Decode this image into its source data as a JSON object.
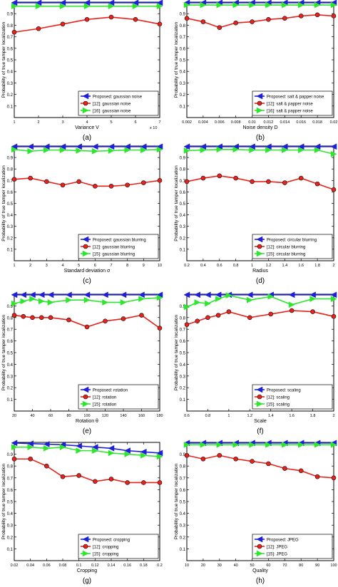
{
  "figure": {
    "colors": {
      "proposed": "#1f1fd6",
      "ref12": "#e8211b",
      "ref15": "#2ee62e"
    }
  },
  "chart_data": [
    {
      "type": "line",
      "caption": "(a)",
      "xlabel": "Variance V",
      "ylabel": "Probability of true tamper localization",
      "x": [
        1,
        2,
        3,
        4,
        5,
        6,
        7
      ],
      "xlim": [
        1,
        7
      ],
      "ylim": [
        0,
        1
      ],
      "xticks": [
        "1",
        "2",
        "3",
        "4",
        "5",
        "6",
        "7"
      ],
      "xmultiplier": "x 10",
      "yticks": [
        "0.1",
        "0.2",
        "0.3",
        "0.4",
        "0.5",
        "0.6",
        "0.7",
        "0.8",
        "0.9"
      ],
      "legend_position": "bottom-right",
      "grid": false,
      "series": [
        {
          "name": "Proposed: gaussian noise",
          "marker": "triangle-left",
          "color": "#1f1fd6",
          "values": [
            0.995,
            0.995,
            0.995,
            0.995,
            0.995,
            0.995,
            0.995
          ]
        },
        {
          "name": "[12]: gaussian noise",
          "marker": "circle",
          "color": "#e8211b",
          "values": [
            0.74,
            0.77,
            0.81,
            0.85,
            0.87,
            0.85,
            0.81
          ]
        },
        {
          "name": "[16]: gaussian noise",
          "marker": "triangle-right",
          "color": "#2ee62e",
          "values": [
            0.965,
            0.965,
            0.965,
            0.965,
            0.965,
            0.965,
            0.965
          ]
        }
      ]
    },
    {
      "type": "line",
      "caption": "(b)",
      "xlabel": "Noise density D",
      "ylabel": "Probability of true tamper localization",
      "x": [
        0.002,
        0.004,
        0.006,
        0.008,
        0.01,
        0.012,
        0.014,
        0.016,
        0.018,
        0.02
      ],
      "xlim": [
        0.002,
        0.02
      ],
      "ylim": [
        0,
        1
      ],
      "xticks": [
        "0.002",
        "0.004",
        "0.006",
        "0.008",
        "0.01",
        "0.012",
        "0.014",
        "0.016",
        "0.018",
        "0.02"
      ],
      "yticks": [
        "0.1",
        "0.2",
        "0.3",
        "0.4",
        "0.5",
        "0.6",
        "0.7",
        "0.8",
        "0.9"
      ],
      "legend_position": "bottom-right",
      "grid": false,
      "series": [
        {
          "name": "Proposed: salt & papper noise",
          "marker": "triangle-left",
          "color": "#1f1fd6",
          "values": [
            0.995,
            0.995,
            0.995,
            0.995,
            0.995,
            0.995,
            0.995,
            0.995,
            0.995,
            0.995
          ]
        },
        {
          "name": "[12]: salt & papper noise",
          "marker": "circle",
          "color": "#e8211b",
          "values": [
            0.86,
            0.83,
            0.78,
            0.82,
            0.83,
            0.85,
            0.86,
            0.88,
            0.89,
            0.88
          ]
        },
        {
          "name": "[16]: salt & papper noise",
          "marker": "triangle-right",
          "color": "#2ee62e",
          "values": [
            0.975,
            0.975,
            0.975,
            0.975,
            0.975,
            0.975,
            0.975,
            0.975,
            0.975,
            0.975
          ]
        }
      ]
    },
    {
      "type": "line",
      "caption": "(c)",
      "xlabel": "Standard deviation σ",
      "ylabel": "Probability of true tamper localization",
      "x": [
        1,
        2,
        3,
        4,
        5,
        6,
        7,
        8,
        9,
        10
      ],
      "xlim": [
        1,
        10
      ],
      "ylim": [
        0,
        1
      ],
      "xticks": [
        "1",
        "2",
        "3",
        "4",
        "5",
        "6",
        "7",
        "8",
        "9",
        "10"
      ],
      "yticks": [
        "0.1",
        "0.2",
        "0.3",
        "0.4",
        "0.5",
        "0.6",
        "0.7",
        "0.8",
        "0.9"
      ],
      "legend_position": "bottom-right",
      "grid": false,
      "series": [
        {
          "name": "Proposed: gaussian blurring",
          "marker": "triangle-left",
          "color": "#1f1fd6",
          "values": [
            0.995,
            0.995,
            0.995,
            0.995,
            0.995,
            0.995,
            0.995,
            0.995,
            0.995,
            0.995
          ]
        },
        {
          "name": "[12]: gaussian blurring",
          "marker": "circle",
          "color": "#e8211b",
          "values": [
            0.71,
            0.72,
            0.69,
            0.66,
            0.69,
            0.65,
            0.65,
            0.66,
            0.68,
            0.7
          ]
        },
        {
          "name": "[15]: gaussian blurring",
          "marker": "triangle-right",
          "color": "#2ee62e",
          "values": [
            0.97,
            0.955,
            0.965,
            0.965,
            0.96,
            0.955,
            0.96,
            0.965,
            0.965,
            0.97
          ]
        }
      ]
    },
    {
      "type": "line",
      "caption": "(d)",
      "xlabel": "Radius",
      "ylabel": "Probability of true tamper localization",
      "x": [
        0.2,
        0.4,
        0.6,
        0.8,
        1,
        1.2,
        1.4,
        1.6,
        1.8,
        2
      ],
      "xlim": [
        0.2,
        2
      ],
      "ylim": [
        0,
        1
      ],
      "xticks": [
        "0.2",
        "0.4",
        "0.6",
        "0.8",
        "1",
        "1.2",
        "1.4",
        "1.6",
        "1.8",
        "2"
      ],
      "yticks": [
        "0.1",
        "0.2",
        "0.3",
        "0.4",
        "0.5",
        "0.6",
        "0.7",
        "0.8",
        "0.9"
      ],
      "legend_position": "bottom-right",
      "grid": false,
      "series": [
        {
          "name": "Proposed: circular blurring",
          "marker": "triangle-left",
          "color": "#1f1fd6",
          "values": [
            0.995,
            0.995,
            0.995,
            0.995,
            0.995,
            0.995,
            0.995,
            0.995,
            0.995,
            0.995
          ]
        },
        {
          "name": "[12]: circular blurring",
          "marker": "circle",
          "color": "#e8211b",
          "values": [
            0.69,
            0.72,
            0.74,
            0.72,
            0.69,
            0.69,
            0.68,
            0.72,
            0.67,
            0.62
          ]
        },
        {
          "name": "[15]: circular blurring",
          "marker": "triangle-right",
          "color": "#2ee62e",
          "values": [
            0.96,
            0.965,
            0.97,
            0.97,
            0.965,
            0.965,
            0.965,
            0.965,
            0.965,
            0.93
          ]
        }
      ]
    },
    {
      "type": "line",
      "caption": "(e)",
      "xlabel": "Rotation θ",
      "ylabel": "Probability of true tamper localization",
      "x": [
        20,
        30,
        40,
        50,
        60,
        80,
        100,
        120,
        140,
        160,
        180
      ],
      "xlim": [
        20,
        180
      ],
      "ylim": [
        0,
        1
      ],
      "xticks": [
        "20",
        "40",
        "60",
        "80",
        "100",
        "120",
        "140",
        "160",
        "180"
      ],
      "yticks": [
        "0.1",
        "0.2",
        "0.3",
        "0.4",
        "0.5",
        "0.6",
        "0.7",
        "0.8",
        "0.9"
      ],
      "legend_position": "bottom-right",
      "grid": false,
      "series": [
        {
          "name": "Proposed: rotation",
          "marker": "triangle-left",
          "color": "#1f1fd6",
          "values": [
            0.995,
            0.995,
            0.995,
            0.995,
            0.995,
            0.995,
            0.995,
            0.995,
            0.995,
            0.995,
            0.995
          ]
        },
        {
          "name": "[12]: rotation",
          "marker": "circle",
          "color": "#e8211b",
          "values": [
            0.82,
            0.81,
            0.8,
            0.8,
            0.8,
            0.78,
            0.72,
            0.77,
            0.79,
            0.82,
            0.71
          ]
        },
        {
          "name": "[15]: rotation",
          "marker": "triangle-right",
          "color": "#2ee62e",
          "values": [
            0.92,
            0.94,
            0.96,
            0.94,
            0.93,
            0.95,
            0.95,
            0.93,
            0.93,
            0.96,
            0.97
          ]
        }
      ]
    },
    {
      "type": "line",
      "caption": "(f)",
      "xlabel": "Scale",
      "ylabel": "Probability of true tamper localization",
      "x": [
        0.6,
        0.7,
        0.8,
        0.9,
        1,
        1.2,
        1.4,
        1.6,
        1.8,
        2
      ],
      "xlim": [
        0.6,
        2
      ],
      "ylim": [
        0,
        1
      ],
      "xticks": [
        "0.6",
        "0.8",
        "1",
        "1.2",
        "1.4",
        "1.6",
        "1.8",
        "2"
      ],
      "yticks": [
        "0.1",
        "0.2",
        "0.3",
        "0.4",
        "0.5",
        "0.6",
        "0.7",
        "0.8",
        "0.9"
      ],
      "legend_position": "bottom-right",
      "grid": false,
      "series": [
        {
          "name": "Proposed: scaling",
          "marker": "triangle-left",
          "color": "#1f1fd6",
          "values": [
            0.995,
            0.995,
            0.995,
            0.995,
            0.995,
            0.995,
            0.995,
            0.995,
            0.995,
            0.995
          ]
        },
        {
          "name": "[12]: scaling",
          "marker": "circle",
          "color": "#e8211b",
          "values": [
            0.74,
            0.77,
            0.8,
            0.82,
            0.85,
            0.8,
            0.83,
            0.86,
            0.85,
            0.81
          ]
        },
        {
          "name": "[15]: scaling",
          "marker": "triangle-right",
          "color": "#2ee62e",
          "values": [
            0.89,
            0.93,
            0.92,
            0.96,
            0.99,
            0.95,
            0.98,
            0.91,
            0.96,
            0.96
          ]
        }
      ]
    },
    {
      "type": "line",
      "caption": "(g)",
      "xlabel": "Cropping",
      "ylabel": "Probability of true tamper localization",
      "x": [
        0.02,
        0.04,
        0.06,
        0.08,
        0.1,
        0.12,
        0.14,
        0.16,
        0.18,
        0.2
      ],
      "xlim": [
        0.02,
        0.2
      ],
      "ylim": [
        0,
        1
      ],
      "xticks": [
        "0.02",
        "0.04",
        "0.06",
        "0.08",
        "0.1",
        "0.12",
        "0.14",
        "0.16",
        "0.18",
        "0.2"
      ],
      "yticks": [
        "0.1",
        "0.2",
        "0.3",
        "0.4",
        "0.5",
        "0.6",
        "0.7",
        "0.8",
        "0.9"
      ],
      "legend_position": "bottom-right",
      "grid": false,
      "series": [
        {
          "name": "Proposed: cropping",
          "marker": "triangle-left",
          "color": "#1f1fd6",
          "values": [
            0.995,
            0.99,
            0.985,
            0.98,
            0.97,
            0.96,
            0.95,
            0.93,
            0.92,
            0.91
          ]
        },
        {
          "name": "[12]: cropping",
          "marker": "circle",
          "color": "#e8211b",
          "values": [
            0.86,
            0.86,
            0.8,
            0.71,
            0.72,
            0.67,
            0.69,
            0.66,
            0.66,
            0.66
          ]
        },
        {
          "name": "[15]: cropping",
          "marker": "triangle-right",
          "color": "#2ee62e",
          "values": [
            0.96,
            0.96,
            0.95,
            0.96,
            0.93,
            0.93,
            0.91,
            0.9,
            0.89,
            0.88
          ]
        }
      ]
    },
    {
      "type": "line",
      "caption": "(h)",
      "xlabel": "Quality",
      "ylabel": "Probability of true tamper localization",
      "x": [
        10,
        20,
        30,
        40,
        50,
        60,
        70,
        80,
        90,
        100
      ],
      "xlim": [
        10,
        100
      ],
      "ylim": [
        0,
        1
      ],
      "xticks": [
        "10",
        "20",
        "30",
        "40",
        "50",
        "60",
        "70",
        "80",
        "90",
        "100"
      ],
      "yticks": [
        "0.1",
        "0.2",
        "0.3",
        "0.4",
        "0.5",
        "0.6",
        "0.7",
        "0.8",
        "0.9"
      ],
      "legend_position": "bottom-right",
      "grid": false,
      "series": [
        {
          "name": "Proposed: JPEG",
          "marker": "triangle-left",
          "color": "#1f1fd6",
          "values": [
            0.995,
            0.995,
            0.995,
            0.995,
            0.995,
            0.995,
            0.995,
            0.995,
            0.995,
            0.995
          ]
        },
        {
          "name": "[12]: JPEG",
          "marker": "circle",
          "color": "#e8211b",
          "values": [
            0.89,
            0.86,
            0.89,
            0.86,
            0.84,
            0.82,
            0.78,
            0.76,
            0.71,
            0.7
          ]
        },
        {
          "name": "[15]: JPEG",
          "marker": "triangle-right",
          "color": "#2ee62e",
          "values": [
            0.98,
            0.98,
            0.98,
            0.98,
            0.98,
            0.98,
            0.98,
            0.98,
            0.98,
            0.98
          ]
        }
      ]
    }
  ]
}
